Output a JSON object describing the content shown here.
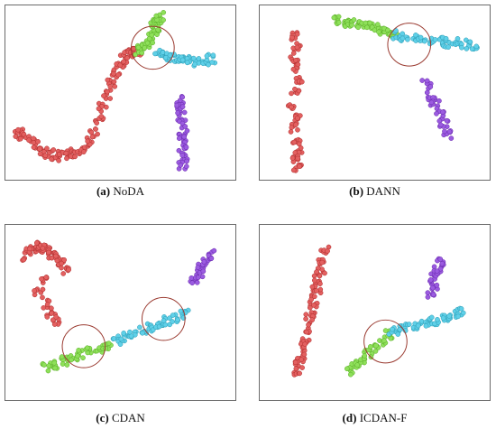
{
  "figure": {
    "panels": [
      {
        "letter": "a",
        "name": "NoDA"
      },
      {
        "letter": "b",
        "name": "DANN"
      },
      {
        "letter": "c",
        "name": "CDAN"
      },
      {
        "letter": "d",
        "name": "ICDAN-F"
      }
    ]
  },
  "colors": {
    "red_class": "#e36060",
    "green_class": "#8ee05a",
    "cyan_class": "#5fd0e8",
    "purple_class": "#9b5be0",
    "circle": "#9a3a30",
    "border": "#6a6a6a"
  },
  "chart_data": [
    {
      "type": "scatter",
      "panel": "a",
      "title": "NoDA",
      "xlabel": "",
      "ylabel": "",
      "xlim": [
        0,
        100
      ],
      "ylim": [
        0,
        100
      ],
      "grid": false,
      "legend": "none",
      "series": [
        {
          "color": "#e36060",
          "x": [
            3,
            5,
            8,
            11,
            14,
            17,
            20,
            23,
            26,
            29,
            32,
            35,
            38,
            40,
            42,
            44,
            46,
            48,
            50,
            52,
            54,
            56,
            58
          ],
          "y": [
            25,
            23,
            20,
            17,
            14,
            12,
            11,
            10,
            11,
            12,
            15,
            19,
            25,
            33,
            41,
            49,
            56,
            62,
            67,
            71,
            74,
            75,
            76
          ]
        },
        {
          "color": "#8ee05a",
          "x": [
            58,
            60,
            62,
            64,
            65,
            66,
            66,
            67,
            68
          ],
          "y": [
            76,
            77,
            79,
            82,
            86,
            90,
            93,
            96,
            98
          ]
        },
        {
          "color": "#5fd0e8",
          "x": [
            68,
            71,
            74,
            77,
            80,
            83,
            86,
            89,
            92
          ],
          "y": [
            74,
            73,
            72,
            71,
            70,
            69,
            69,
            70,
            71
          ]
        },
        {
          "color": "#9b5be0",
          "x": [
            78,
            78,
            78,
            79,
            79,
            79,
            79,
            79,
            79
          ],
          "y": [
            45,
            40,
            35,
            30,
            25,
            20,
            15,
            10,
            5
          ]
        }
      ],
      "annotations": [
        {
          "shape": "circle",
          "x": 65,
          "y": 78
        }
      ]
    },
    {
      "type": "scatter",
      "panel": "b",
      "title": "DANN",
      "xlabel": "",
      "ylabel": "",
      "xlim": [
        0,
        100
      ],
      "ylim": [
        0,
        100
      ],
      "grid": false,
      "legend": "none",
      "series": [
        {
          "color": "#e36060",
          "x": [
            13,
            14,
            13,
            14,
            15,
            13,
            12,
            14,
            13,
            14,
            15,
            13,
            14
          ],
          "y": [
            85,
            78,
            72,
            65,
            58,
            50,
            42,
            35,
            28,
            20,
            13,
            8,
            4
          ]
        },
        {
          "color": "#8ee05a",
          "x": [
            32,
            35,
            38,
            41,
            44,
            47,
            50,
            53,
            56,
            59
          ],
          "y": [
            95,
            94,
            93,
            93,
            92,
            91,
            90,
            89,
            88,
            87
          ]
        },
        {
          "color": "#5fd0e8",
          "x": [
            60,
            64,
            68,
            72,
            76,
            80,
            84,
            88,
            92,
            96
          ],
          "y": [
            86,
            85,
            84,
            83,
            82,
            82,
            81,
            81,
            80,
            80
          ]
        },
        {
          "color": "#9b5be0",
          "x": [
            74,
            76,
            78,
            80,
            82,
            84
          ],
          "y": [
            55,
            48,
            42,
            36,
            30,
            24
          ]
        }
      ],
      "annotations": [
        {
          "shape": "circle",
          "x": 66,
          "y": 80
        }
      ]
    },
    {
      "type": "scatter",
      "panel": "c",
      "title": "CDAN",
      "xlabel": "",
      "ylabel": "",
      "xlim": [
        0,
        100
      ],
      "ylim": [
        0,
        100
      ],
      "grid": false,
      "legend": "none",
      "series": [
        {
          "color": "#e36060",
          "x": [
            6,
            8,
            10,
            12,
            14,
            16,
            18,
            20,
            22,
            24,
            14,
            12,
            16,
            18,
            20
          ],
          "y": [
            85,
            88,
            90,
            92,
            90,
            88,
            86,
            84,
            80,
            76,
            70,
            62,
            55,
            50,
            45
          ]
        },
        {
          "color": "#8ee05a",
          "x": [
            16,
            20,
            24,
            28,
            32,
            36,
            40,
            44
          ],
          "y": [
            16,
            18,
            20,
            22,
            24,
            26,
            28,
            30
          ]
        },
        {
          "color": "#5fd0e8",
          "x": [
            48,
            52,
            56,
            60,
            64,
            68,
            72,
            76,
            80
          ],
          "y": [
            33,
            35,
            37,
            39,
            41,
            43,
            45,
            47,
            49
          ]
        },
        {
          "color": "#9b5be0",
          "x": [
            84,
            86,
            88,
            90,
            92
          ],
          "y": [
            70,
            74,
            78,
            82,
            86
          ]
        }
      ],
      "annotations": [
        {
          "shape": "circle",
          "x": 33,
          "y": 29
        },
        {
          "shape": "circle",
          "x": 70,
          "y": 46
        }
      ]
    },
    {
      "type": "scatter",
      "panel": "d",
      "title": "ICDAN-F",
      "xlabel": "",
      "ylabel": "",
      "xlim": [
        0,
        100
      ],
      "ylim": [
        0,
        100
      ],
      "grid": false,
      "legend": "none",
      "series": [
        {
          "color": "#e36060",
          "x": [
            27,
            26,
            25,
            24,
            23,
            22,
            21,
            20,
            19,
            18,
            17,
            16,
            15,
            14
          ],
          "y": [
            88,
            82,
            76,
            70,
            64,
            58,
            52,
            46,
            40,
            34,
            28,
            22,
            18,
            14
          ]
        },
        {
          "color": "#8ee05a",
          "x": [
            38,
            41,
            44,
            47,
            50,
            53,
            56
          ],
          "y": [
            14,
            17,
            20,
            24,
            28,
            32,
            36
          ]
        },
        {
          "color": "#5fd0e8",
          "x": [
            58,
            62,
            66,
            70,
            74,
            78,
            82,
            86,
            90
          ],
          "y": [
            38,
            39,
            40,
            42,
            44,
            45,
            47,
            48,
            50
          ]
        },
        {
          "color": "#9b5be0",
          "x": [
            76,
            77,
            78,
            79,
            80
          ],
          "y": [
            62,
            67,
            72,
            77,
            82
          ]
        }
      ],
      "annotations": [
        {
          "shape": "circle",
          "x": 55,
          "y": 32
        }
      ]
    }
  ]
}
